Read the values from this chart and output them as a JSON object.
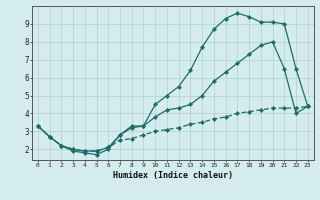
{
  "xlabel": "Humidex (Indice chaleur)",
  "bg_color": "#d4eced",
  "grid_color": "#b0d0d0",
  "line_color": "#1e6b6b",
  "xlim": [
    -0.5,
    23.5
  ],
  "ylim": [
    1.4,
    10.0
  ],
  "xticks": [
    0,
    1,
    2,
    3,
    4,
    5,
    6,
    7,
    8,
    9,
    10,
    11,
    12,
    13,
    14,
    15,
    16,
    17,
    18,
    19,
    20,
    21,
    22,
    23
  ],
  "yticks": [
    2,
    3,
    4,
    5,
    6,
    7,
    8,
    9
  ],
  "hours": [
    0,
    1,
    2,
    3,
    4,
    5,
    6,
    7,
    8,
    9,
    10,
    11,
    12,
    13,
    14,
    15,
    16,
    17,
    18,
    19,
    20,
    21,
    22,
    23
  ],
  "line1": [
    3.3,
    2.7,
    2.2,
    1.9,
    1.8,
    1.7,
    2.0,
    2.8,
    3.2,
    3.3,
    4.5,
    5.0,
    5.5,
    6.4,
    7.7,
    8.7,
    9.3,
    9.6,
    9.4,
    9.1,
    9.1,
    9.0,
    6.5,
    4.4
  ],
  "line2": [
    3.3,
    2.7,
    2.2,
    2.0,
    1.9,
    1.9,
    2.1,
    2.8,
    3.3,
    3.3,
    3.8,
    4.2,
    4.3,
    4.5,
    5.0,
    5.8,
    6.3,
    6.8,
    7.3,
    7.8,
    8.0,
    6.5,
    4.0,
    4.4
  ],
  "line3": [
    3.3,
    2.7,
    2.2,
    2.0,
    1.9,
    1.9,
    2.1,
    2.5,
    2.6,
    2.8,
    3.0,
    3.1,
    3.2,
    3.4,
    3.5,
    3.7,
    3.8,
    4.0,
    4.1,
    4.2,
    4.3,
    4.3,
    4.3,
    4.4
  ]
}
